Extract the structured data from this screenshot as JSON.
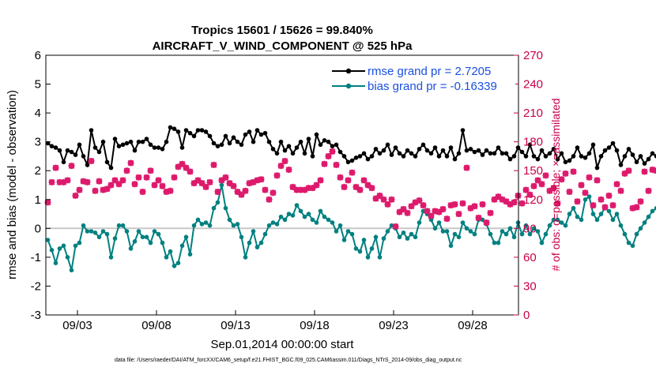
{
  "chart_data": {
    "type": "line",
    "title": "Tropics 15601 / 15626 = 99.840%",
    "subtitle": "AIRCRAFT_V_WIND_COMPONENT @ 525 hPa",
    "xlabel": "Sep.01,2014 00:00:00 start",
    "ylabel": "rmse and bias (model - observation)",
    "y2label": "# of obs: o=possible; ×=assimilated",
    "footnote": "data file: /Users/raeder/DAI/ATM_forcXX/CAM6_setup/f.e21.FHIST_BGC.f09_025.CAM6assim.011/Diags_NTrS_2014-09/obs_diag_output.nc",
    "xlim": [
      1,
      30.9
    ],
    "ylim": [
      -3,
      6
    ],
    "y2lim": [
      0,
      270
    ],
    "x_tick_values": [
      3,
      8,
      13,
      18,
      23,
      28
    ],
    "x_tick_labels": [
      "09/03",
      "09/08",
      "09/13",
      "09/18",
      "09/23",
      "09/28"
    ],
    "y_ticks": [
      "-3",
      "-2",
      "-1",
      "0",
      "1",
      "2",
      "3",
      "4",
      "5",
      "6"
    ],
    "y2_ticks": [
      "0",
      "30",
      "60",
      "90",
      "120",
      "150",
      "180",
      "210",
      "240",
      "270"
    ],
    "x_start": 1.125,
    "x_step": 0.25,
    "series": [
      {
        "name": "rmse grand pr = 2.7205",
        "color": "#000000",
        "marker": "dot",
        "values": [
          2.95,
          2.85,
          2.8,
          2.7,
          2.3,
          2.7,
          2.65,
          2.55,
          2.9,
          2.5,
          2.2,
          3.4,
          2.8,
          2.65,
          3.0,
          2.3,
          2.1,
          3.1,
          2.85,
          2.9,
          2.95,
          3.0,
          2.7,
          3.0,
          3.0,
          3.1,
          2.9,
          2.8,
          2.8,
          2.75,
          3.0,
          3.5,
          3.45,
          3.35,
          2.8,
          3.4,
          3.3,
          3.2,
          3.4,
          3.4,
          3.35,
          3.2,
          2.95,
          2.85,
          2.9,
          3.2,
          2.95,
          3.15,
          3.0,
          2.9,
          3.25,
          3.35,
          3.0,
          3.4,
          3.25,
          3.3,
          3.0,
          2.75,
          2.6,
          3.0,
          2.7,
          2.85,
          2.6,
          2.8,
          3.0,
          2.6,
          3.1,
          2.5,
          3.25,
          2.9,
          3.05,
          3.0,
          2.85,
          2.9,
          2.65,
          2.5,
          2.3,
          2.35,
          2.45,
          2.5,
          2.6,
          2.4,
          2.5,
          2.75,
          2.6,
          2.7,
          2.9,
          2.55,
          2.8,
          2.6,
          2.5,
          2.7,
          2.6,
          2.5,
          2.75,
          2.9,
          2.7,
          2.6,
          2.8,
          2.5,
          2.7,
          2.5,
          2.8,
          2.4,
          2.6,
          3.4,
          2.7,
          2.75,
          2.65,
          2.7,
          2.55,
          2.7,
          2.6,
          2.6,
          2.8,
          2.6,
          2.6,
          2.4,
          2.5,
          2.8,
          2.65,
          2.5,
          2.9,
          2.5,
          2.4,
          2.7,
          2.5,
          2.6,
          2.75,
          2.4,
          2.6,
          2.3,
          2.35,
          2.5,
          2.8,
          2.5,
          2.45,
          2.6,
          2.9,
          2.1,
          2.5,
          2.7,
          2.8,
          2.95,
          2.7,
          2.2,
          2.5,
          2.75,
          2.55,
          2.3,
          2.5,
          2.25,
          2.4,
          2.6,
          2.5,
          2.55,
          2.75,
          2.8,
          2.7,
          2.8,
          2.6,
          2.7,
          2.65,
          2.6,
          2.8,
          2.5,
          2.65,
          2.35,
          2.8,
          2.85,
          2.95,
          2.9
        ]
      },
      {
        "name": "bias grand pr = -0.16339",
        "color": "#008080",
        "marker": "dot",
        "values": [
          -0.4,
          -0.75,
          -1.2,
          -0.7,
          -0.6,
          -1.0,
          -1.45,
          -0.6,
          -0.5,
          0.1,
          -0.1,
          -0.1,
          -0.15,
          -0.3,
          -0.1,
          -0.2,
          -1.0,
          -0.35,
          0.1,
          0.1,
          -0.1,
          -0.7,
          -0.45,
          -0.1,
          -0.3,
          -0.3,
          -0.5,
          -0.1,
          -0.2,
          -0.5,
          -1.0,
          -0.8,
          -1.3,
          -1.2,
          -0.6,
          -0.3,
          -0.9,
          0.1,
          0.3,
          0.15,
          0.2,
          0.1,
          0.7,
          0.9,
          1.5,
          0.7,
          0.3,
          0.1,
          0.15,
          -0.3,
          -1.0,
          -0.5,
          -0.1,
          -0.65,
          -0.5,
          -0.2,
          0.1,
          0.2,
          0.15,
          0.4,
          0.3,
          0.5,
          0.45,
          0.8,
          0.6,
          0.4,
          0.5,
          0.3,
          0.2,
          0.6,
          0.4,
          0.3,
          0.2,
          -0.1,
          0.1,
          -0.4,
          -0.1,
          -0.2,
          -0.7,
          -0.8,
          -0.4,
          -1.0,
          -0.7,
          -0.3,
          -1.0,
          -0.35,
          -0.1,
          0.1,
          0.0,
          -0.3,
          -0.15,
          -0.35,
          -0.2,
          -0.3,
          0.2,
          0.6,
          0.5,
          0.3,
          0.0,
          0.2,
          -0.1,
          -0.1,
          -0.6,
          -0.2,
          -0.3,
          0.2,
          0.0,
          -0.1,
          -0.2,
          0.3,
          0.3,
          0.15,
          -0.2,
          -0.5,
          -0.5,
          -0.1,
          -0.2,
          0.0,
          -0.3,
          0.2,
          -0.2,
          0.1,
          -0.2,
          0.0,
          -0.1,
          -0.5,
          -0.2,
          0.1,
          0.3,
          0.3,
          0.2,
          0.1,
          0.5,
          0.7,
          0.4,
          0.3,
          1.0,
          1.1,
          0.5,
          0.3,
          0.5,
          0.7,
          0.6,
          0.3,
          0.5,
          0.1,
          -0.2,
          -0.5,
          -0.6,
          -0.2,
          0.0,
          0.2,
          0.4,
          0.6,
          0.7,
          0.3,
          -0.5,
          -0.6,
          -0.6,
          -0.3,
          0.2,
          0.7,
          0.3,
          0.6,
          -0.2,
          0.7,
          0.8,
          0.3,
          0.2,
          0.6,
          0.5,
          0.2,
          -0.2,
          0.3,
          0.0,
          -0.7
        ]
      },
      {
        "name": "# of obs possible",
        "axis": "right",
        "color": "#dd1a6c",
        "marker": "o",
        "values": [
          117,
          138,
          153,
          138,
          138,
          140,
          155,
          124,
          130,
          139,
          138,
          160,
          129,
          139,
          130,
          131,
          135,
          140,
          136,
          140,
          150,
          158,
          136,
          143,
          128,
          143,
          150,
          135,
          140,
          134,
          128,
          129,
          143,
          154,
          157,
          153,
          149,
          137,
          140,
          137,
          133,
          138,
          156,
          128,
          140,
          143,
          137,
          134,
          128,
          125,
          129,
          137,
          138,
          140,
          141,
          130,
          120,
          127,
          145,
          155,
          160,
          151,
          133,
          130,
          130,
          130,
          132,
          132,
          135,
          140,
          157,
          165,
          170,
          156,
          143,
          133,
          140,
          148,
          133,
          130,
          140,
          135,
          132,
          121,
          124,
          120,
          115,
          120,
          92,
          107,
          110,
          106,
          113,
          117,
          119,
          114,
          108,
          103,
          108,
          107,
          110,
          100,
          114,
          115,
          105,
          116,
          153,
          111,
          113,
          101,
          115,
          96,
          106,
          120,
          123,
          120,
          118,
          115,
          117,
          124,
          116,
          130,
          125,
          134,
          140,
          136,
          145,
          129,
          132,
          116,
          141,
          147,
          128,
          149,
          118,
          135,
          127,
          143,
          114,
          140,
          120,
          112,
          124,
          114,
          136,
          129,
          147,
          150,
          111,
          112,
          118,
          149,
          129,
          151,
          150,
          138,
          131,
          127,
          134,
          122,
          124,
          109,
          114,
          111,
          116,
          116,
          108,
          109,
          115,
          110,
          112,
          111,
          116,
          112,
          125,
          112,
          116,
          0
        ]
      },
      {
        "name": "# of obs assimilated",
        "axis": "right",
        "color": "#dd1a6c",
        "marker": "x",
        "values": [
          117,
          138,
          153,
          138,
          138,
          140,
          155,
          124,
          130,
          139,
          138,
          160,
          129,
          139,
          130,
          131,
          135,
          140,
          136,
          140,
          150,
          158,
          136,
          143,
          128,
          143,
          150,
          135,
          140,
          134,
          128,
          129,
          143,
          154,
          157,
          153,
          149,
          137,
          140,
          137,
          133,
          138,
          156,
          128,
          140,
          143,
          137,
          134,
          128,
          125,
          129,
          137,
          138,
          140,
          141,
          130,
          120,
          127,
          145,
          155,
          160,
          151,
          133,
          130,
          130,
          130,
          132,
          132,
          135,
          140,
          157,
          165,
          170,
          156,
          143,
          133,
          140,
          148,
          133,
          130,
          140,
          135,
          132,
          121,
          124,
          120,
          115,
          120,
          92,
          107,
          110,
          106,
          113,
          117,
          119,
          114,
          108,
          103,
          108,
          107,
          110,
          100,
          114,
          115,
          105,
          116,
          153,
          111,
          113,
          101,
          115,
          96,
          106,
          120,
          123,
          120,
          118,
          115,
          117,
          124,
          116,
          130,
          125,
          134,
          140,
          136,
          145,
          129,
          132,
          116,
          141,
          147,
          128,
          149,
          118,
          135,
          127,
          143,
          114,
          140,
          120,
          112,
          124,
          114,
          136,
          129,
          147,
          150,
          111,
          112,
          118,
          149,
          129,
          151,
          150,
          138,
          131,
          127,
          134,
          122,
          124,
          109,
          114,
          111,
          116,
          116,
          108,
          109,
          115,
          110,
          112,
          111,
          116,
          112,
          125,
          112,
          116,
          0
        ]
      }
    ]
  }
}
